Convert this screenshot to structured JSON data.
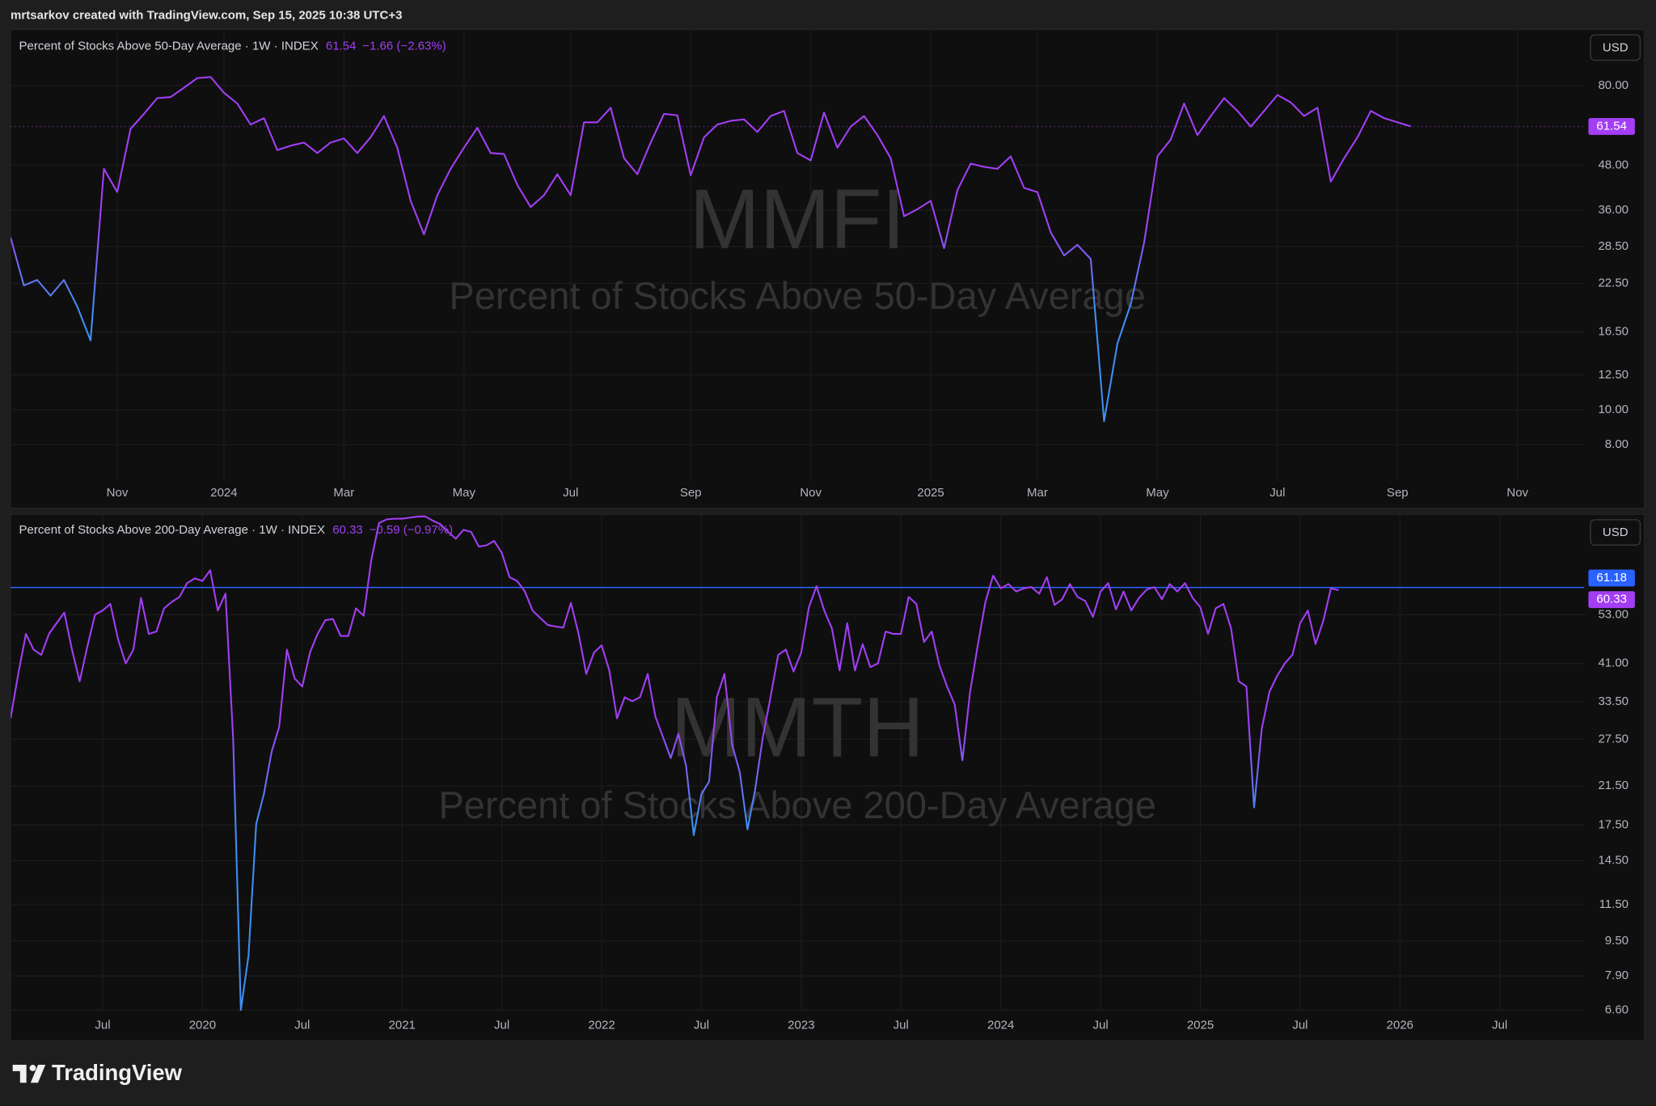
{
  "header": "mrtsarkov created with TradingView.com, Sep 15, 2025 10:38 UTC+3",
  "footer": "TradingView",
  "chart_data": [
    {
      "type": "line",
      "title": "Percent of Stocks Above 50-Day Average · 1W · INDEX",
      "change": "−1.66 (−2.63%)",
      "watermark": "MMFI",
      "subtitle": "Percent of Stocks Above 50-Day Average",
      "currency": "USD",
      "log_scale": true,
      "grid": true,
      "color": "#a33ef4",
      "low_color": "#3f8ef2",
      "ylim": [
        6.35,
        113
      ],
      "yticks": [
        {
          "value": 80,
          "label": "80.00"
        },
        {
          "value": 48,
          "label": "48.00"
        },
        {
          "value": 36,
          "label": "36.00"
        },
        {
          "value": 28.5,
          "label": "28.50"
        },
        {
          "value": 22.5,
          "label": "22.50"
        },
        {
          "value": 16.5,
          "label": "16.50"
        },
        {
          "value": 12.5,
          "label": "12.50"
        },
        {
          "value": 10,
          "label": "10.00"
        },
        {
          "value": 8,
          "label": "8.00"
        }
      ],
      "categories": [
        null,
        null,
        null,
        null,
        null,
        null,
        null,
        null,
        "Nov",
        null,
        null,
        null,
        null,
        null,
        null,
        null,
        "2024",
        null,
        null,
        null,
        null,
        null,
        null,
        null,
        null,
        "Mar",
        null,
        null,
        null,
        null,
        null,
        null,
        null,
        null,
        "May",
        null,
        null,
        null,
        null,
        null,
        null,
        null,
        "Jul",
        null,
        null,
        null,
        null,
        null,
        null,
        null,
        null,
        "Sep",
        null,
        null,
        null,
        null,
        null,
        null,
        null,
        null,
        "Nov",
        null,
        null,
        null,
        null,
        null,
        null,
        null,
        null,
        "2025",
        null,
        null,
        null,
        null,
        null,
        null,
        null,
        "Mar",
        null,
        null,
        null,
        null,
        null,
        null,
        null,
        null,
        "May",
        null,
        null,
        null,
        null,
        null,
        null,
        null,
        null,
        "Jul",
        null,
        null,
        null,
        null,
        null,
        null,
        null,
        null,
        "Sep",
        null,
        null,
        null,
        null,
        null,
        null,
        null,
        null,
        "Nov",
        null,
        null,
        null,
        null,
        null
      ],
      "values": [
        30.2,
        22.2,
        23.0,
        20.8,
        23.0,
        19.4,
        15.6,
        46.9,
        40.4,
        60.6,
        66.7,
        73.8,
        74.3,
        78.9,
        83.9,
        84.5,
        76.4,
        71.3,
        62.3,
        64.9,
        52.9,
        54.4,
        55.5,
        51.9,
        55.5,
        57.0,
        51.9,
        57.4,
        65.8,
        53.7,
        38.2,
        30.8,
        39.6,
        46.9,
        53.7,
        61.0,
        51.9,
        51.6,
        42.3,
        36.7,
        39.6,
        45.3,
        39.6,
        63.2,
        63.2,
        69.4,
        50.2,
        45.3,
        55.5,
        66.7,
        66.1,
        45.0,
        57.4,
        62.3,
        63.8,
        64.4,
        59.4,
        65.8,
        68.0,
        51.9,
        49.5,
        67.3,
        53.7,
        61.5,
        65.8,
        58.2,
        50.2,
        34.6,
        36.2,
        38.2,
        28.2,
        40.9,
        48.5,
        47.5,
        46.9,
        50.8,
        41.5,
        40.4,
        31.2,
        26.9,
        28.8,
        26.3,
        9.3,
        15.3,
        19.7,
        29.2,
        50.8,
        56.6,
        71.3,
        58.2,
        65.8,
        73.8,
        68.0,
        61.5,
        68.0,
        75.3,
        71.8,
        65.8,
        69.4,
        43.2,
        50.2,
        57.4,
        68.0,
        64.9,
        63.2,
        61.54,
        null,
        null,
        null,
        null,
        null,
        null,
        null,
        null,
        null,
        null,
        null,
        null,
        null
      ]
    },
    {
      "type": "line",
      "title": "Percent of Stocks Above 200-Day Average · 1W · INDEX",
      "change": "−0.59 (−0.97%)",
      "watermark": "MMTH",
      "subtitle": "Percent of Stocks Above 200-Day Average",
      "currency": "USD",
      "log_scale": true,
      "grid": true,
      "color": "#a33ef4",
      "low_color": "#3f8ef2",
      "price_line": 61.18,
      "price_line_color": "#2962ff",
      "ylim": [
        6.57,
        89.4
      ],
      "yticks": [
        {
          "value": 53,
          "label": "53.00"
        },
        {
          "value": 41,
          "label": "41.00"
        },
        {
          "value": 33.5,
          "label": "33.50"
        },
        {
          "value": 27.5,
          "label": "27.50"
        },
        {
          "value": 21.5,
          "label": "21.50"
        },
        {
          "value": 17.5,
          "label": "17.50"
        },
        {
          "value": 14.5,
          "label": "14.50"
        },
        {
          "value": 11.5,
          "label": "11.50"
        },
        {
          "value": 9.5,
          "label": "9.50"
        },
        {
          "value": 7.9,
          "label": "7.90"
        },
        {
          "value": 6.6,
          "label": "6.60"
        }
      ],
      "categories": [
        null,
        null,
        null,
        null,
        null,
        null,
        null,
        null,
        null,
        null,
        null,
        null,
        "Jul",
        null,
        null,
        null,
        null,
        null,
        null,
        null,
        null,
        null,
        null,
        null,
        null,
        "2020",
        null,
        null,
        null,
        null,
        null,
        null,
        null,
        null,
        null,
        null,
        null,
        null,
        "Jul",
        null,
        null,
        null,
        null,
        null,
        null,
        null,
        null,
        null,
        null,
        null,
        null,
        "2021",
        null,
        null,
        null,
        null,
        null,
        null,
        null,
        null,
        null,
        null,
        null,
        null,
        "Jul",
        null,
        null,
        null,
        null,
        null,
        null,
        null,
        null,
        null,
        null,
        null,
        null,
        "2022",
        null,
        null,
        null,
        null,
        null,
        null,
        null,
        null,
        null,
        null,
        null,
        null,
        "Jul",
        null,
        null,
        null,
        null,
        null,
        null,
        null,
        null,
        null,
        null,
        null,
        null,
        "2023",
        null,
        null,
        null,
        null,
        null,
        null,
        null,
        null,
        null,
        null,
        null,
        null,
        "Jul",
        null,
        null,
        null,
        null,
        null,
        null,
        null,
        null,
        null,
        null,
        null,
        null,
        "2024",
        null,
        null,
        null,
        null,
        null,
        null,
        null,
        null,
        null,
        null,
        null,
        null,
        "Jul",
        null,
        null,
        null,
        null,
        null,
        null,
        null,
        null,
        null,
        null,
        null,
        null,
        "2025",
        null,
        null,
        null,
        null,
        null,
        null,
        null,
        null,
        null,
        null,
        null,
        null,
        "Jul",
        null,
        null,
        null,
        null,
        null,
        null,
        null,
        null,
        null,
        null,
        null,
        null,
        "2026",
        null,
        null,
        null,
        null,
        null,
        null,
        null,
        null,
        null,
        null,
        null,
        null,
        "Jul",
        null,
        null,
        null,
        null,
        null,
        null,
        null,
        null,
        null,
        null,
        null
      ],
      "values": [
        30.7,
        38.8,
        47.9,
        44.1,
        42.9,
        47.9,
        50.7,
        53.6,
        44.1,
        37.3,
        44.8,
        53.0,
        54.2,
        56.1,
        46.6,
        41.0,
        44.1,
        57.9,
        47.9,
        48.5,
        54.8,
        56.7,
        58.2,
        62.6,
        64.2,
        63.3,
        67.0,
        54.2,
        59.2,
        27.5,
        6.6,
        8.8,
        17.6,
        20.6,
        25.7,
        29.4,
        44.1,
        37.9,
        36.3,
        43.4,
        47.9,
        51.5,
        51.8,
        47.4,
        47.4,
        54.8,
        52.7,
        70.8,
        85.9,
        87.6,
        87.9,
        87.9,
        88.4,
        88.9,
        89.0,
        87.0,
        85.4,
        82.0,
        79.1,
        82.9,
        82.0,
        75.9,
        76.4,
        78.2,
        73.4,
        64.6,
        63.3,
        59.9,
        54.2,
        52.1,
        50.2,
        49.8,
        49.5,
        56.4,
        47.9,
        38.8,
        43.4,
        45.1,
        39.5,
        30.7,
        34.3,
        33.6,
        34.3,
        38.8,
        31.0,
        27.8,
        24.9,
        28.3,
        23.9,
        16.6,
        20.6,
        22.0,
        34.3,
        38.8,
        26.7,
        23.1,
        17.1,
        21.1,
        27.8,
        34.3,
        42.9,
        44.1,
        39.3,
        43.4,
        55.1,
        61.6,
        54.2,
        49.3,
        39.5,
        50.7,
        39.5,
        45.4,
        40.2,
        41.0,
        48.5,
        47.9,
        47.9,
        58.2,
        56.1,
        45.9,
        48.5,
        40.6,
        36.3,
        33.0,
        24.6,
        35.3,
        45.1,
        56.7,
        65.1,
        60.9,
        62.3,
        59.9,
        60.9,
        61.3,
        59.2,
        64.6,
        55.8,
        57.5,
        62.3,
        58.2,
        57.0,
        52.4,
        59.9,
        62.6,
        54.5,
        59.9,
        54.2,
        57.9,
        60.5,
        61.3,
        57.5,
        62.3,
        59.9,
        62.6,
        57.9,
        55.1,
        47.9,
        54.8,
        56.1,
        49.3,
        37.3,
        36.3,
        19.2,
        29.1,
        35.3,
        38.4,
        41.0,
        42.9,
        50.7,
        54.2,
        45.4,
        51.2,
        60.9,
        60.33,
        null,
        null,
        null,
        null,
        null,
        null,
        null,
        null,
        null,
        null,
        null,
        null,
        null,
        null,
        null,
        null,
        null,
        null,
        null,
        null,
        null,
        null,
        null,
        null,
        null,
        null,
        null,
        null,
        null,
        null,
        null,
        null
      ]
    }
  ]
}
